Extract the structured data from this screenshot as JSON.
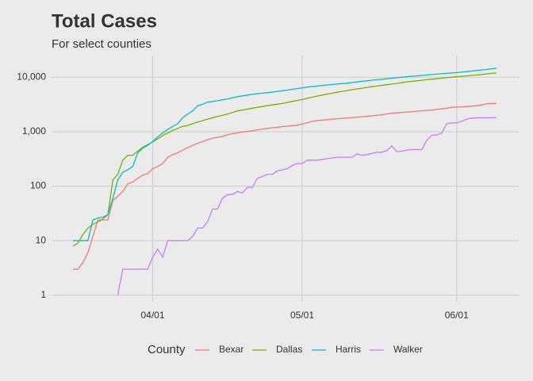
{
  "chart_data": {
    "type": "line",
    "title": "Total Cases",
    "subtitle": "For select counties",
    "categories": [
      null,
      null,
      null,
      null,
      null,
      null,
      null,
      null,
      null,
      null,
      null,
      null,
      null,
      null,
      null,
      null,
      "04/01",
      null,
      null,
      null,
      null,
      null,
      null,
      null,
      null,
      null,
      null,
      null,
      null,
      null,
      null,
      null,
      null,
      null,
      null,
      null,
      null,
      null,
      null,
      null,
      null,
      null,
      null,
      null,
      null,
      null,
      "05/01",
      null,
      null,
      null,
      null,
      null,
      null,
      null,
      null,
      null,
      null,
      null,
      null,
      null,
      null,
      null,
      null,
      null,
      null,
      null,
      null,
      null,
      null,
      null,
      null,
      null,
      null,
      null,
      null,
      null,
      null,
      "06/01",
      null,
      null,
      null,
      null,
      null,
      null,
      null,
      null
    ],
    "series": [
      {
        "name": "Bexar",
        "color": "#F8766D",
        "values": [
          3,
          3,
          4,
          6,
          12,
          24,
          24,
          24,
          55,
          65,
          80,
          110,
          120,
          140,
          160,
          170,
          210,
          230,
          260,
          340,
          380,
          410,
          460,
          510,
          560,
          610,
          660,
          710,
          760,
          790,
          820,
          880,
          920,
          950,
          990,
          1010,
          1040,
          1080,
          1120,
          1150,
          1180,
          1210,
          1240,
          1260,
          1290,
          1320,
          1380,
          1460,
          1550,
          1600,
          1630,
          1660,
          1700,
          1730,
          1760,
          1790,
          1820,
          1850,
          1880,
          1920,
          1960,
          2000,
          2060,
          2120,
          2180,
          2220,
          2260,
          2300,
          2340,
          2380,
          2420,
          2460,
          2500,
          2560,
          2620,
          2700,
          2800,
          2830,
          2860,
          2900,
          2950,
          3000,
          3100,
          3250,
          3300,
          3300
        ]
      },
      {
        "name": "Dallas",
        "color": "#7CAE00",
        "values": [
          8,
          9,
          13,
          17,
          20,
          22,
          25,
          30,
          130,
          165,
          300,
          370,
          370,
          440,
          520,
          580,
          650,
          740,
          850,
          950,
          1050,
          1150,
          1250,
          1300,
          1400,
          1500,
          1600,
          1700,
          1800,
          1900,
          2000,
          2100,
          2250,
          2400,
          2500,
          2600,
          2700,
          2800,
          2900,
          3000,
          3100,
          3200,
          3300,
          3450,
          3600,
          3750,
          3900,
          4100,
          4300,
          4500,
          4700,
          4900,
          5100,
          5300,
          5500,
          5700,
          5900,
          6100,
          6300,
          6500,
          6700,
          6900,
          7100,
          7300,
          7500,
          7700,
          8000,
          8200,
          8400,
          8600,
          8800,
          9000,
          9200,
          9400,
          9600,
          9800,
          10000,
          10200,
          10400,
          10600,
          10800,
          11000,
          11200,
          11500,
          11800,
          12000
        ]
      },
      {
        "name": "Harris",
        "color": "#00BFC4",
        "values": [
          10,
          10,
          10,
          10,
          24,
          26,
          27,
          30,
          60,
          130,
          180,
          200,
          230,
          410,
          500,
          560,
          660,
          800,
          950,
          1100,
          1250,
          1400,
          1800,
          2100,
          2400,
          3000,
          3200,
          3500,
          3600,
          3700,
          3850,
          4000,
          4200,
          4400,
          4550,
          4700,
          4850,
          5000,
          5100,
          5200,
          5350,
          5500,
          5650,
          5800,
          6000,
          6200,
          6400,
          6600,
          6750,
          6900,
          7050,
          7200,
          7350,
          7500,
          7650,
          7800,
          8000,
          8200,
          8400,
          8600,
          8800,
          9000,
          9200,
          9400,
          9600,
          9800,
          10000,
          10200,
          10400,
          10600,
          10800,
          11000,
          11200,
          11400,
          11600,
          11800,
          12000,
          12200,
          12400,
          12700,
          13000,
          13300,
          13600,
          13900,
          14300,
          14600
        ]
      },
      {
        "name": "Walker",
        "color": "#C77CFF",
        "values": [
          null,
          null,
          null,
          null,
          null,
          null,
          null,
          null,
          null,
          1,
          3,
          3,
          3,
          3,
          3,
          3,
          5,
          7,
          5,
          10,
          10,
          10,
          10,
          10,
          12,
          17,
          17,
          22,
          38,
          38,
          60,
          70,
          70,
          80,
          75,
          95,
          95,
          140,
          150,
          165,
          165,
          190,
          200,
          210,
          240,
          260,
          260,
          300,
          300,
          300,
          310,
          320,
          330,
          340,
          340,
          340,
          340,
          390,
          370,
          380,
          400,
          420,
          420,
          450,
          550,
          430,
          440,
          460,
          470,
          470,
          470,
          700,
          860,
          870,
          950,
          1400,
          1450,
          1450,
          1550,
          1700,
          1780,
          1800,
          1800,
          1800,
          1810,
          1820
        ]
      }
    ],
    "ylim": [
      0.76,
      25000
    ],
    "yscale": "log",
    "yticks": [
      1,
      10,
      100,
      {
        "value": 1000,
        "label": "1,000"
      },
      {
        "value": 10000,
        "label": "10,000"
      }
    ],
    "grid": true,
    "legend_title": "County",
    "legend_position": "bottom"
  }
}
